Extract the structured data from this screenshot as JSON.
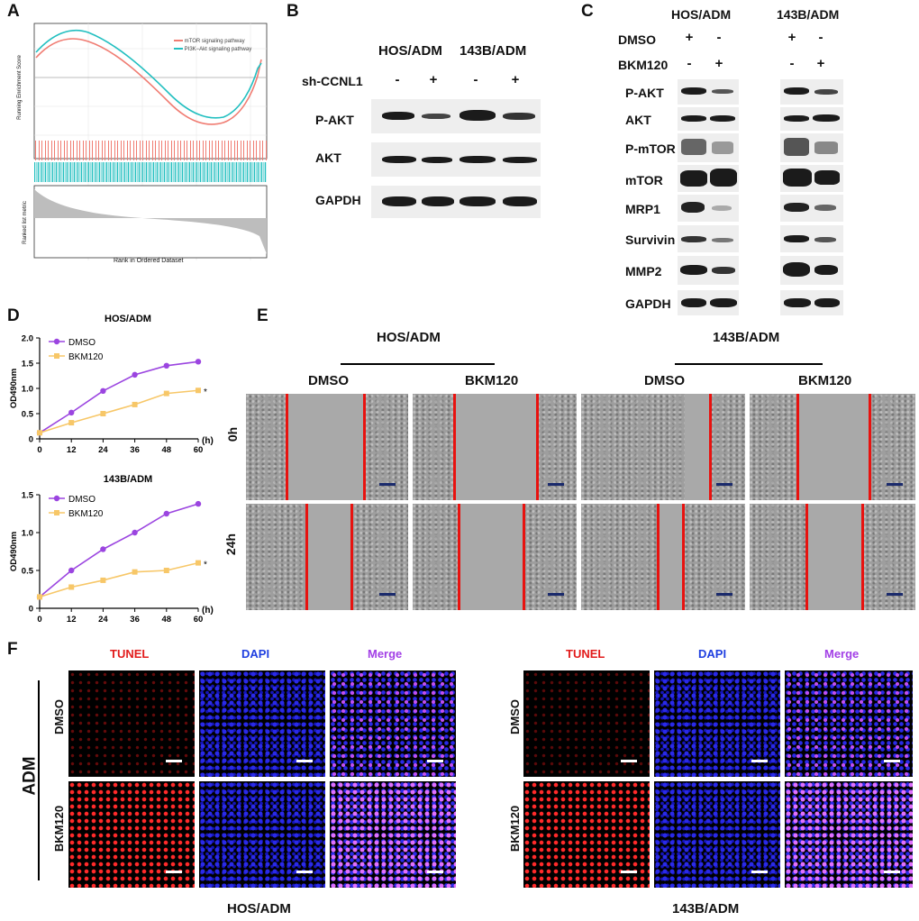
{
  "panels": {
    "A": "A",
    "B": "B",
    "C": "C",
    "D": "D",
    "E": "E",
    "F": "F"
  },
  "panelA": {
    "legend": [
      "mTOR signaling pathway",
      "PI3K−Akt signaling pathway"
    ],
    "ylabel_top": "Running Enrichment Score",
    "ylabel_bottom": "Ranked list metric",
    "xlabel": "Rank in Ordered Dataset",
    "colors": {
      "mtor": "#f07c72",
      "pi3k": "#22bfc0"
    }
  },
  "panelB": {
    "groups": [
      "HOS/ADM",
      "143B/ADM"
    ],
    "condition": "sh-CCNL1",
    "signs": [
      "-",
      "+",
      "-",
      "+"
    ],
    "rows": [
      "P-AKT",
      "AKT",
      "GAPDH"
    ]
  },
  "panelC": {
    "groups": [
      "HOS/ADM",
      "143B/ADM"
    ],
    "conditions": [
      {
        "label": "DMSO",
        "signs": [
          "+",
          "-",
          "+",
          "-"
        ]
      },
      {
        "label": "BKM120",
        "signs": [
          "-",
          "+",
          "-",
          "+"
        ]
      }
    ],
    "rows": [
      "P-AKT",
      "AKT",
      "P-mTOR",
      "mTOR",
      "MRP1",
      "Survivin",
      "MMP2",
      "GAPDH"
    ]
  },
  "panelD": {
    "charts": [
      {
        "title": "HOS/ADM",
        "ylabel": "OD490nm",
        "unit": "(h)",
        "x": [
          0,
          12,
          24,
          36,
          48,
          60
        ],
        "ylim": [
          0,
          2.0
        ],
        "yticks": [
          "0",
          "0.5",
          "1.0",
          "1.5",
          "2.0"
        ],
        "series": [
          {
            "name": "DMSO",
            "color": "#9b45e0",
            "values": [
              0.12,
              0.52,
              0.95,
              1.27,
              1.45,
              1.53
            ]
          },
          {
            "name": "BKM120",
            "color": "#f7c768",
            "values": [
              0.12,
              0.32,
              0.5,
              0.68,
              0.9,
              0.96
            ]
          }
        ],
        "annotation": "*"
      },
      {
        "title": "143B/ADM",
        "ylabel": "OD490nm",
        "unit": "(h)",
        "x": [
          0,
          12,
          24,
          36,
          48,
          60
        ],
        "ylim": [
          0,
          1.5
        ],
        "yticks": [
          "0",
          "0.5",
          "1.0",
          "1.5"
        ],
        "series": [
          {
            "name": "DMSO",
            "color": "#9b45e0",
            "values": [
              0.15,
              0.5,
              0.78,
              1.0,
              1.25,
              1.38
            ]
          },
          {
            "name": "BKM120",
            "color": "#f7c768",
            "values": [
              0.15,
              0.28,
              0.37,
              0.48,
              0.5,
              0.6
            ]
          }
        ],
        "annotation": "*"
      }
    ]
  },
  "panelE": {
    "groups": [
      "HOS/ADM",
      "143B/ADM"
    ],
    "columns": [
      "DMSO",
      "BKM120",
      "DMSO",
      "BKM120"
    ],
    "rows": [
      "0h",
      "24h"
    ]
  },
  "panelF": {
    "channels": [
      "TUNEL",
      "DAPI",
      "Merge"
    ],
    "channel_colors": [
      "#e21b1b",
      "#1f3fe0",
      "#a23fe6"
    ],
    "rows": [
      "DMSO",
      "BKM120"
    ],
    "side_label": "ADM",
    "groups": [
      "HOS/ADM",
      "143B/ADM"
    ]
  }
}
